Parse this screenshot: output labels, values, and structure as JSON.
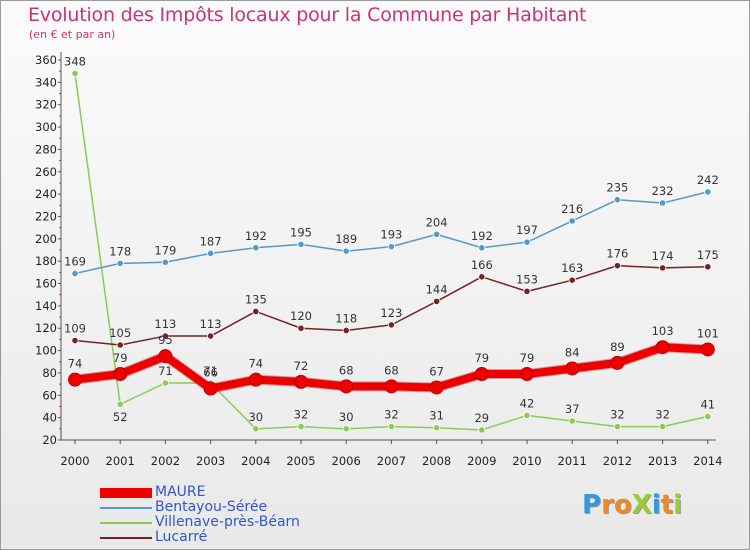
{
  "title": "Evolution des Impôts locaux pour la Commune par Habitant",
  "subtitle": "(en € et par an)",
  "logo": {
    "text": "ProXiti",
    "letters": [
      {
        "ch": "P",
        "color": "#3399dd"
      },
      {
        "ch": "r",
        "color": "#ee8822"
      },
      {
        "ch": "o",
        "color": "#ee8822"
      },
      {
        "ch": "X",
        "color": "#99cc33"
      },
      {
        "ch": "i",
        "color": "#3399dd"
      },
      {
        "ch": "t",
        "color": "#ee8822"
      },
      {
        "ch": "i",
        "color": "#99cc33"
      }
    ]
  },
  "chart_data": {
    "type": "line",
    "title": "Evolution des Impôts locaux pour la Commune par Habitant",
    "subtitle": "(en € et par an)",
    "x": [
      "2000",
      "2001",
      "2002",
      "2003",
      "2004",
      "2005",
      "2006",
      "2007",
      "2008",
      "2009",
      "2010",
      "2011",
      "2012",
      "2013",
      "2014"
    ],
    "ylim": [
      20,
      360
    ],
    "yticks": [
      20,
      40,
      60,
      80,
      100,
      120,
      140,
      160,
      180,
      200,
      220,
      240,
      260,
      280,
      300,
      320,
      340,
      360
    ],
    "grid": false,
    "legend_position": "bottom-left",
    "series": [
      {
        "name": "MAURE",
        "color": "#ee0000",
        "values": [
          74,
          79,
          95,
          66,
          74,
          72,
          68,
          68,
          67,
          79,
          79,
          84,
          89,
          103,
          101
        ]
      },
      {
        "name": "Bentayou-Sérée",
        "color": "#5599cc",
        "values": [
          169,
          178,
          179,
          187,
          192,
          195,
          189,
          193,
          204,
          192,
          197,
          216,
          235,
          232,
          242
        ]
      },
      {
        "name": "Villenave-près-Béarn",
        "color": "#88cc55",
        "values": [
          348,
          52,
          71,
          71,
          30,
          32,
          30,
          32,
          31,
          29,
          42,
          37,
          32,
          32,
          41
        ]
      },
      {
        "name": "Lucarré",
        "color": "#772222",
        "values": [
          109,
          105,
          113,
          113,
          135,
          120,
          118,
          123,
          144,
          166,
          153,
          163,
          176,
          174,
          175
        ]
      }
    ],
    "data_labels": {
      "MAURE": [
        "74",
        "79",
        "95",
        "66",
        "74",
        "72",
        "68",
        "68",
        "67",
        "79",
        "79",
        "84",
        "89",
        "103",
        "101"
      ],
      "Bentayou-Sérée": [
        "169",
        "178",
        "179",
        "187",
        "192",
        "195",
        "189",
        "193",
        "204",
        "192",
        "197",
        "216",
        "235",
        "232",
        "242"
      ],
      "Villenave-près-Béarn": [
        "348",
        "52",
        "71",
        "71",
        "30",
        "32",
        "30",
        "32",
        "31",
        "29",
        "42",
        "37",
        "32",
        "32",
        "41"
      ],
      "Lucarré": [
        "109",
        "105",
        "113",
        "113",
        "135",
        "120",
        "118",
        "123",
        "144",
        "166",
        "153",
        "163",
        "176",
        "174",
        "175"
      ]
    }
  }
}
